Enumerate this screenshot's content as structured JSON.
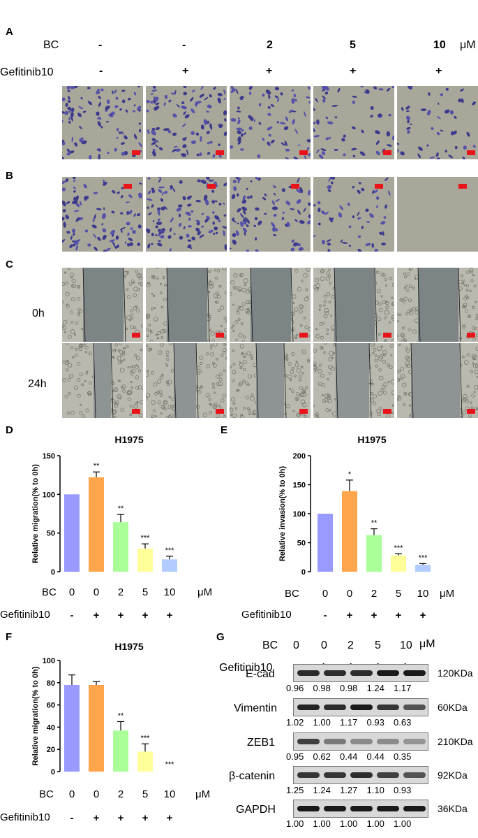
{
  "panel_labels": {
    "A": "A",
    "B": "B",
    "C": "C",
    "D": "D",
    "E": "E",
    "F": "F",
    "G": "G"
  },
  "top": {
    "bc_label": "BC",
    "bc_values": [
      "-",
      "-",
      "2",
      "5",
      "10"
    ],
    "unit": "μM",
    "gef_label": "Gefitinib10",
    "gef_values": [
      "-",
      "+",
      "+",
      "+",
      "+"
    ],
    "time_labels": [
      "0h",
      "24h"
    ]
  },
  "colors": {
    "c0": "#9999ff",
    "c1": "#ffa64d",
    "c2": "#aaff99",
    "c3": "#ffff99",
    "c4": "#b3ccff"
  },
  "x_rows": {
    "bc_label": "BC",
    "bc_values": [
      "0",
      "0",
      "2",
      "5",
      "10"
    ],
    "unit": "μM",
    "gef_label": "Gefitinib10",
    "gef_values": [
      "-",
      "+",
      "+",
      "+",
      "+"
    ]
  },
  "chart_data": [
    {
      "panel": "D",
      "type": "bar",
      "title": "H1975",
      "ylabel": "Relative migration(% to 0h)",
      "ylim": [
        0,
        150
      ],
      "yticks": [
        0,
        50,
        100,
        150
      ],
      "values": [
        100,
        122,
        64,
        30,
        16
      ],
      "errors": [
        0,
        7,
        10,
        6,
        4
      ],
      "sig": [
        "",
        "**",
        "**",
        "***",
        "***"
      ]
    },
    {
      "panel": "E",
      "type": "bar",
      "title": "H1975",
      "ylabel": "Relative invasion(% to 0h)",
      "ylim": [
        0,
        200
      ],
      "yticks": [
        0,
        50,
        100,
        150,
        200
      ],
      "values": [
        100,
        139,
        63,
        28,
        12
      ],
      "errors": [
        0,
        19,
        11,
        3,
        2
      ],
      "sig": [
        "",
        "*",
        "**",
        "***",
        "***"
      ]
    },
    {
      "panel": "F",
      "type": "bar",
      "title": "H1975",
      "ylabel": "Relative migration(% to 0h)",
      "ylim": [
        0,
        100
      ],
      "yticks": [
        0,
        20,
        40,
        60,
        80,
        100
      ],
      "values": [
        78,
        78,
        37,
        18,
        0
      ],
      "errors": [
        9,
        3,
        8,
        7,
        0
      ],
      "sig": [
        "",
        "",
        "**",
        "***",
        "***"
      ]
    }
  ],
  "western": {
    "bc_label": "BC",
    "bc_values": [
      "0",
      "0",
      "2",
      "5",
      "10"
    ],
    "unit": "μM",
    "gef_label": "Gefitinib10",
    "gef_values": [
      "-",
      "+",
      "+",
      "+",
      "+"
    ],
    "blots": [
      {
        "name": "E-cad",
        "size": "120KDa",
        "values": [
          "0.96",
          "0.98",
          "0.98",
          "1.24",
          "1.17"
        ]
      },
      {
        "name": "Vimentin",
        "size": "60KDa",
        "values": [
          "1.02",
          "1.00",
          "1.17",
          "0.93",
          "0.63"
        ]
      },
      {
        "name": "ZEB1",
        "size": "210KDa",
        "values": [
          "0.95",
          "0.62",
          "0.44",
          "0.44",
          "0.35"
        ]
      },
      {
        "name": "β-catenin",
        "size": "92KDa",
        "values": [
          "1.25",
          "1.24",
          "1.27",
          "1.10",
          "0.93"
        ]
      },
      {
        "name": "GAPDH",
        "size": "36KDa",
        "values": [
          "1.00",
          "1.00",
          "1.00",
          "1.00",
          "1.00"
        ]
      }
    ]
  }
}
